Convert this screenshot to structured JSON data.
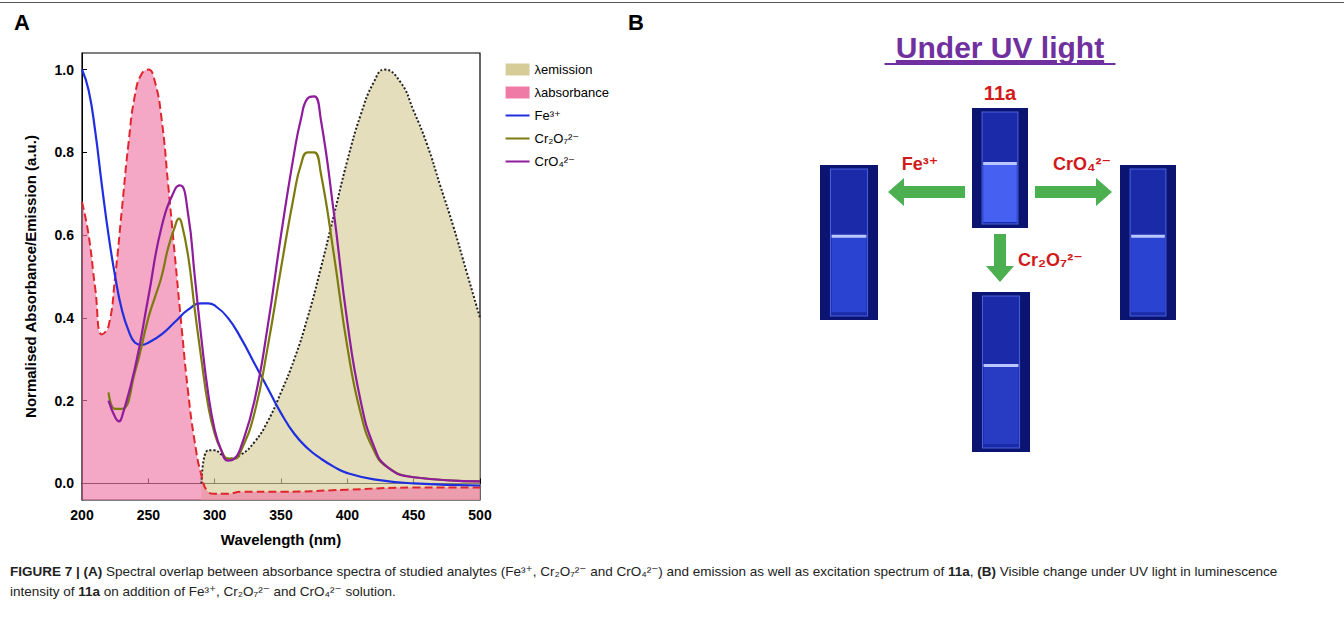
{
  "chart_data": {
    "type": "line",
    "x_label": "Wavelength (nm)",
    "y_label": "Normalised Absorbance/Emission (a.u.)",
    "xlim": [
      200,
      500
    ],
    "xticks": [
      200,
      250,
      300,
      350,
      400,
      450,
      500
    ],
    "ylim": [
      -0.04,
      1.04
    ],
    "yticks": [
      {
        "value": 0,
        "label": "0.0"
      },
      0.2,
      0.4,
      0.6,
      0.8,
      {
        "value": 1,
        "label": "1.0"
      }
    ],
    "grid": false,
    "legend": "right",
    "series": [
      {
        "name": "λemission",
        "type": "area",
        "color": "#d6cc98",
        "line_style": "dotted",
        "x": [
          290,
          295,
          300,
          305,
          310,
          320,
          330,
          340,
          350,
          360,
          370,
          380,
          390,
          400,
          410,
          420,
          428,
          440,
          450,
          460,
          470,
          480,
          490,
          500
        ],
        "values": [
          0.0,
          0.08,
          0.08,
          0.07,
          0.06,
          0.07,
          0.1,
          0.15,
          0.22,
          0.3,
          0.4,
          0.52,
          0.65,
          0.78,
          0.89,
          0.97,
          1.0,
          0.97,
          0.9,
          0.82,
          0.72,
          0.62,
          0.51,
          0.4
        ]
      },
      {
        "name": "λabsorbance",
        "type": "area",
        "color": "#f07aa6",
        "line_style": "dashed",
        "x": [
          200,
          205,
          210,
          215,
          220,
          225,
          230,
          235,
          240,
          245,
          250,
          255,
          260,
          265,
          270,
          275,
          280,
          285,
          290,
          295,
          300,
          310,
          320,
          350,
          400,
          450,
          500
        ],
        "values": [
          0.68,
          0.6,
          0.47,
          0.36,
          0.38,
          0.5,
          0.66,
          0.82,
          0.94,
          0.99,
          1.0,
          0.97,
          0.88,
          0.72,
          0.55,
          0.38,
          0.22,
          0.1,
          0.02,
          -0.02,
          -0.025,
          -0.025,
          -0.02,
          -0.02,
          -0.015,
          -0.01,
          -0.01
        ]
      },
      {
        "name": "Fe³⁺",
        "type": "line",
        "color": "#1f2fe0",
        "line_style": "solid",
        "x": [
          200,
          205,
          210,
          215,
          220,
          225,
          230,
          235,
          240,
          245,
          250,
          260,
          270,
          280,
          290,
          295,
          300,
          310,
          320,
          330,
          340,
          350,
          360,
          370,
          380,
          390,
          400,
          420,
          450,
          500
        ],
        "values": [
          1.0,
          0.95,
          0.85,
          0.72,
          0.6,
          0.5,
          0.42,
          0.37,
          0.34,
          0.335,
          0.34,
          0.36,
          0.39,
          0.42,
          0.435,
          0.435,
          0.43,
          0.4,
          0.35,
          0.29,
          0.23,
          0.17,
          0.12,
          0.085,
          0.06,
          0.04,
          0.025,
          0.01,
          0.0,
          -0.005
        ]
      },
      {
        "name": "Cr₂O₇²⁻",
        "type": "line",
        "color": "#7d7a10",
        "line_style": "solid",
        "x": [
          220,
          225,
          230,
          240,
          250,
          255,
          260,
          265,
          270,
          273,
          275,
          280,
          285,
          290,
          295,
          300,
          305,
          310,
          315,
          320,
          330,
          340,
          350,
          360,
          365,
          370,
          375,
          380,
          390,
          400,
          410,
          420,
          430,
          450,
          500
        ],
        "values": [
          0.22,
          0.18,
          0.18,
          0.27,
          0.4,
          0.45,
          0.5,
          0.57,
          0.62,
          0.64,
          0.63,
          0.55,
          0.42,
          0.3,
          0.19,
          0.12,
          0.08,
          0.06,
          0.06,
          0.08,
          0.17,
          0.33,
          0.52,
          0.7,
          0.77,
          0.8,
          0.8,
          0.75,
          0.55,
          0.33,
          0.17,
          0.08,
          0.04,
          0.015,
          0.005
        ]
      },
      {
        "name": "CrO₄²⁻",
        "type": "line",
        "color": "#8e1c9c",
        "line_style": "solid",
        "x": [
          220,
          225,
          228,
          230,
          240,
          250,
          260,
          270,
          274,
          280,
          285,
          290,
          295,
          300,
          305,
          310,
          315,
          320,
          330,
          340,
          350,
          360,
          365,
          370,
          375,
          380,
          390,
          400,
          410,
          420,
          430,
          450,
          500
        ],
        "values": [
          0.2,
          0.16,
          0.15,
          0.16,
          0.28,
          0.45,
          0.62,
          0.71,
          0.72,
          0.65,
          0.5,
          0.35,
          0.22,
          0.13,
          0.08,
          0.055,
          0.06,
          0.09,
          0.2,
          0.38,
          0.6,
          0.8,
          0.88,
          0.93,
          0.935,
          0.88,
          0.65,
          0.39,
          0.2,
          0.09,
          0.04,
          0.015,
          0.005
        ]
      }
    ]
  },
  "panel_labels": [
    "A",
    "B"
  ],
  "panel_b": {
    "title": "Under UV light",
    "center": "11a",
    "left": "Fe³⁺",
    "right": "CrO₄²⁻",
    "bottom": "Cr₂O₇²⁻"
  },
  "caption": [
    {
      "text": "FIGURE 7 | (A)",
      "bold": true
    },
    {
      "text": " Spectral overlap between absorbance spectra of studied analytes (Fe³⁺, Cr₂O₇²⁻ and CrO₄²⁻) and emission as well as excitation spectrum of ",
      "bold": false
    },
    {
      "text": "11a",
      "bold": true
    },
    {
      "text": ", ",
      "bold": false
    },
    {
      "text": "(B)",
      "bold": true
    },
    {
      "text": " Visible change under UV light in luminescence intensity of ",
      "bold": false
    },
    {
      "text": "11a",
      "bold": true
    },
    {
      "text": " on addition of Fe³⁺, Cr₂O₇²⁻ and CrO₄²⁻ solution.",
      "bold": false
    }
  ]
}
